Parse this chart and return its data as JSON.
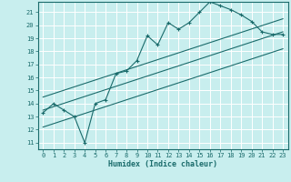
{
  "title": "",
  "xlabel": "Humidex (Indice chaleur)",
  "bg_color": "#c8eeee",
  "grid_color": "#b0d8d8",
  "line_color": "#1a6b6b",
  "xlim": [
    -0.5,
    23.5
  ],
  "ylim": [
    10.5,
    21.8
  ],
  "xticks": [
    0,
    1,
    2,
    3,
    4,
    5,
    6,
    7,
    8,
    9,
    10,
    11,
    12,
    13,
    14,
    15,
    16,
    17,
    18,
    19,
    20,
    21,
    22,
    23
  ],
  "yticks": [
    11,
    12,
    13,
    14,
    15,
    16,
    17,
    18,
    19,
    20,
    21
  ],
  "data_x": [
    0,
    1,
    2,
    3,
    4,
    5,
    6,
    7,
    8,
    9,
    10,
    11,
    12,
    13,
    14,
    15,
    16,
    17,
    18,
    19,
    20,
    21,
    22,
    23
  ],
  "data_y": [
    13.3,
    14.0,
    13.5,
    13.0,
    11.0,
    14.0,
    14.3,
    16.3,
    16.5,
    17.3,
    19.2,
    18.5,
    20.2,
    19.7,
    20.2,
    21.0,
    21.8,
    21.5,
    21.2,
    20.8,
    20.3,
    19.5,
    19.3,
    19.3
  ],
  "line1_x": [
    0,
    23
  ],
  "line1_y": [
    13.5,
    19.5
  ],
  "line2_x": [
    0,
    23
  ],
  "line2_y": [
    14.5,
    20.5
  ],
  "line3_x": [
    0,
    23
  ],
  "line3_y": [
    12.2,
    18.2
  ]
}
